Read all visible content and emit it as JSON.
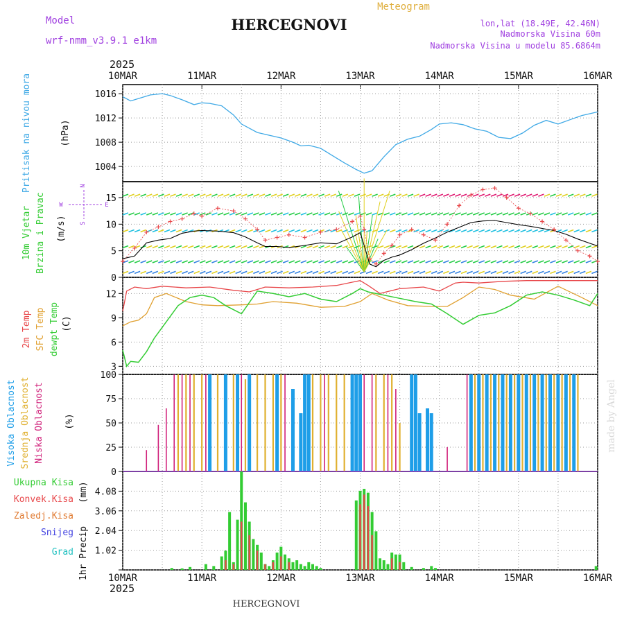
{
  "header": {
    "model_label": "Model",
    "model_name": "wrf-nmm_v3.9.1 e1km",
    "title": "HERCEGNOVI",
    "product": "Meteogram",
    "lonlat": "lon,lat (18.49E, 42.46N)",
    "elevation": "Nadmorska Visina 60m",
    "model_elevation": "Nadmorska Visina u modelu 85.6864m",
    "watermark": "made by Angel",
    "footer_title": "HERCEGNOVI"
  },
  "colors": {
    "pressure": "#3fa9e6",
    "temp2m": "#e8474a",
    "sfc": "#e0a030",
    "dew": "#33cc33",
    "high_cloud": "#1e9ee8",
    "mid_cloud": "#e0b030",
    "low_cloud": "#d0207a",
    "precip_total": "#33cc33",
    "precip_conv": "#e8474a",
    "precip_frozen": "#e07a30",
    "precip_snow": "#4040e0",
    "precip_graupel": "#20c0c0",
    "wind_dir_label": "#a040e0"
  },
  "chart_data": [
    {
      "type": "line",
      "panel": "pressure",
      "ylabel": [
        "Pritisak na nivou mora",
        "(hPa)"
      ],
      "x_year": "2025",
      "x_ticks": [
        "10MAR",
        "11MAR",
        "12MAR",
        "13MAR",
        "14MAR",
        "15MAR",
        "16MAR"
      ],
      "xlim": [
        0,
        6
      ],
      "ylim": [
        1001.5,
        1017.5
      ],
      "yticks": [
        1004,
        1008,
        1012,
        1016
      ],
      "series": [
        {
          "name": "pressure",
          "x": [
            0,
            0.1,
            0.2,
            0.35,
            0.5,
            0.6,
            0.75,
            0.9,
            1.0,
            1.1,
            1.25,
            1.4,
            1.5,
            1.7,
            1.9,
            2.0,
            2.15,
            2.25,
            2.35,
            2.5,
            2.65,
            2.8,
            2.95,
            3.05,
            3.15,
            3.3,
            3.45,
            3.6,
            3.75,
            3.9,
            4.0,
            4.15,
            4.3,
            4.45,
            4.6,
            4.75,
            4.9,
            5.05,
            5.2,
            5.35,
            5.5,
            5.65,
            5.8,
            6.0
          ],
          "values": [
            1015.5,
            1014.8,
            1015.2,
            1015.8,
            1016.0,
            1015.7,
            1015.0,
            1014.2,
            1014.5,
            1014.4,
            1014.0,
            1012.5,
            1011.0,
            1009.6,
            1009.0,
            1008.7,
            1008.0,
            1007.4,
            1007.5,
            1007.0,
            1005.8,
            1004.6,
            1003.5,
            1002.9,
            1003.3,
            1005.6,
            1007.6,
            1008.5,
            1009.0,
            1010.1,
            1011.0,
            1011.2,
            1010.9,
            1010.2,
            1009.8,
            1008.8,
            1008.6,
            1009.5,
            1010.8,
            1011.6,
            1011.0,
            1011.7,
            1012.4,
            1013.0
          ]
        }
      ]
    },
    {
      "type": "line",
      "panel": "wind",
      "ylabel": [
        "10m Vjetar",
        "Brzina i Pravac",
        "(m/s)"
      ],
      "compass": [
        "N",
        "E",
        "S",
        "W"
      ],
      "xlim": [
        0,
        6
      ],
      "ylim": [
        0,
        18
      ],
      "yticks": [
        0,
        5,
        10,
        15
      ],
      "levels": [
        15,
        12,
        9,
        6,
        3
      ],
      "series": [
        {
          "name": "wind speed",
          "x": [
            0,
            0.15,
            0.3,
            0.45,
            0.6,
            0.75,
            0.9,
            1.0,
            1.2,
            1.4,
            1.55,
            1.7,
            1.8,
            1.95,
            2.1,
            2.3,
            2.5,
            2.7,
            2.9,
            3.0,
            3.05,
            3.12,
            3.2,
            3.3,
            3.4,
            3.5,
            3.65,
            3.8,
            3.95,
            4.1,
            4.25,
            4.4,
            4.55,
            4.7,
            4.85,
            5.0,
            5.15,
            5.3,
            5.45,
            5.6,
            5.75,
            5.9,
            6.0
          ],
          "values": [
            3.5,
            4.0,
            6.5,
            7.0,
            7.3,
            8.3,
            8.7,
            8.8,
            8.7,
            8.4,
            7.6,
            6.5,
            5.8,
            5.8,
            5.6,
            6.0,
            6.5,
            6.3,
            7.6,
            8.4,
            6.0,
            2.5,
            2.0,
            3.2,
            3.8,
            4.2,
            5.2,
            6.4,
            7.4,
            8.5,
            9.4,
            10.3,
            10.6,
            10.7,
            10.3,
            9.9,
            9.6,
            9.2,
            8.8,
            8.1,
            7.2,
            6.4,
            5.9
          ]
        },
        {
          "name": "gust",
          "x": [
            0,
            0.15,
            0.3,
            0.45,
            0.6,
            0.75,
            0.9,
            1.0,
            1.2,
            1.4,
            1.55,
            1.7,
            1.8,
            1.95,
            2.1,
            2.3,
            2.5,
            2.7,
            2.9,
            3.0,
            3.05,
            3.12,
            3.2,
            3.3,
            3.4,
            3.5,
            3.65,
            3.8,
            3.95,
            4.1,
            4.25,
            4.4,
            4.55,
            4.7,
            4.85,
            5.0,
            5.15,
            5.3,
            5.45,
            5.6,
            5.75,
            5.9,
            6.0
          ],
          "values": [
            3.0,
            5.5,
            8.5,
            9.5,
            10.5,
            11.0,
            12.0,
            11.5,
            13.0,
            12.5,
            11.0,
            9.0,
            7.0,
            7.5,
            8.0,
            7.5,
            8.5,
            9.0,
            10.5,
            11.5,
            9.0,
            3.5,
            2.5,
            4.5,
            6.0,
            8.0,
            9.0,
            8.0,
            7.0,
            10.0,
            13.5,
            15.5,
            16.5,
            16.8,
            15.0,
            13.0,
            12.0,
            10.5,
            9.0,
            7.0,
            5.0,
            4.0,
            3.0
          ]
        }
      ]
    },
    {
      "type": "line",
      "panel": "temperature",
      "ylabel": [
        "2m Temp",
        "SFC Temp",
        "dewpt Temp",
        "(C)"
      ],
      "xlim": [
        0,
        6
      ],
      "ylim": [
        2,
        14
      ],
      "yticks": [
        3,
        6,
        9,
        12
      ],
      "series": [
        {
          "name": "2m Temp",
          "x": [
            0,
            0.05,
            0.15,
            0.3,
            0.5,
            0.8,
            1.1,
            1.4,
            1.6,
            1.8,
            2.1,
            2.4,
            2.7,
            2.9,
            3.0,
            3.1,
            3.25,
            3.5,
            3.8,
            4.0,
            4.2,
            4.3,
            4.5,
            4.8,
            5.1,
            5.4,
            5.7,
            6.0
          ],
          "values": [
            9.8,
            12.3,
            12.8,
            12.6,
            12.9,
            12.7,
            12.8,
            12.4,
            12.2,
            12.8,
            12.7,
            12.8,
            13.0,
            13.4,
            13.6,
            13.0,
            12.0,
            12.6,
            12.8,
            12.3,
            13.3,
            13.4,
            13.3,
            13.5,
            13.6,
            13.6,
            13.6,
            13.6
          ]
        },
        {
          "name": "SFC Temp",
          "x": [
            0,
            0.1,
            0.2,
            0.3,
            0.4,
            0.55,
            0.8,
            1.0,
            1.2,
            1.5,
            1.7,
            1.9,
            2.2,
            2.5,
            2.8,
            3.0,
            3.15,
            3.35,
            3.6,
            3.9,
            4.1,
            4.3,
            4.5,
            4.7,
            4.9,
            5.2,
            5.5,
            5.8,
            6.0
          ],
          "values": [
            8.0,
            8.5,
            8.7,
            9.5,
            11.5,
            12.0,
            11.0,
            10.6,
            10.5,
            10.6,
            10.7,
            11.0,
            10.8,
            10.3,
            10.4,
            11.0,
            12.0,
            11.2,
            10.5,
            10.4,
            10.4,
            11.5,
            12.8,
            12.5,
            11.8,
            11.3,
            12.9,
            11.5,
            10.5
          ]
        },
        {
          "name": "dewpt Temp",
          "x": [
            0,
            0.05,
            0.1,
            0.2,
            0.3,
            0.4,
            0.55,
            0.7,
            0.85,
            1.0,
            1.15,
            1.3,
            1.5,
            1.7,
            1.9,
            2.1,
            2.3,
            2.5,
            2.7,
            2.9,
            3.0,
            3.1,
            3.25,
            3.45,
            3.7,
            3.9,
            4.1,
            4.3,
            4.5,
            4.7,
            4.9,
            5.1,
            5.3,
            5.5,
            5.7,
            5.9,
            6.0
          ],
          "values": [
            5.0,
            3.0,
            3.6,
            3.5,
            4.8,
            6.5,
            8.5,
            10.5,
            11.5,
            11.8,
            11.5,
            10.5,
            9.5,
            12.3,
            12.0,
            11.6,
            12.0,
            11.3,
            11.0,
            12.0,
            12.6,
            12.2,
            11.9,
            11.5,
            11.0,
            10.7,
            9.5,
            8.2,
            9.3,
            9.6,
            10.5,
            11.8,
            12.2,
            11.8,
            11.2,
            10.5,
            12.0
          ]
        }
      ]
    },
    {
      "type": "bar",
      "panel": "cloud",
      "ylabel": [
        "Visoka Oblacnost",
        "Srednja Oblacnost",
        "Niska Oblacnost",
        "(%)"
      ],
      "xlim": [
        0,
        6
      ],
      "ylim": [
        0,
        100
      ],
      "yticks": [
        0,
        25,
        50,
        75,
        100
      ],
      "series": [
        {
          "name": "Visoka Oblacnost",
          "x": [
            1.1,
            1.3,
            1.45,
            1.6,
            1.95,
            2.15,
            2.25,
            2.3,
            2.35,
            2.9,
            2.95,
            3.0,
            3.65,
            3.7,
            3.75,
            3.85,
            3.9,
            4.4,
            4.5,
            4.6,
            4.7,
            4.8,
            4.9,
            5.0,
            5.1,
            5.2,
            5.3,
            5.4,
            5.5,
            5.6,
            5.7
          ],
          "values": [
            100,
            100,
            100,
            100,
            100,
            85,
            60,
            100,
            100,
            100,
            100,
            100,
            100,
            100,
            60,
            65,
            60,
            100,
            100,
            100,
            100,
            100,
            100,
            100,
            100,
            100,
            100,
            100,
            100,
            100,
            100
          ]
        },
        {
          "name": "Srednja Oblacnost",
          "x": [
            0.7,
            0.8,
            0.9,
            1.0,
            1.2,
            1.4,
            1.55,
            1.7,
            1.8,
            1.9,
            2.0,
            2.4,
            2.5,
            2.6,
            2.7,
            2.8,
            3.2,
            3.3,
            3.4,
            3.5,
            4.45,
            4.55,
            4.65,
            4.75,
            4.85,
            4.95,
            5.05,
            5.15,
            5.25,
            5.35,
            5.45,
            5.55,
            5.65,
            5.75
          ],
          "values": [
            100,
            100,
            100,
            100,
            100,
            100,
            95,
            100,
            100,
            100,
            100,
            100,
            100,
            100,
            100,
            100,
            100,
            100,
            100,
            50,
            100,
            100,
            100,
            100,
            100,
            100,
            100,
            100,
            100,
            100,
            100,
            100,
            100,
            100
          ]
        },
        {
          "name": "Niska Oblacnost",
          "x": [
            0.3,
            0.45,
            0.55,
            0.65,
            0.75,
            0.85,
            1.05,
            1.5,
            2.05,
            2.55,
            3.05,
            3.15,
            3.35,
            3.45,
            4.1,
            4.35
          ],
          "values": [
            22,
            48,
            65,
            100,
            100,
            100,
            100,
            100,
            100,
            100,
            100,
            100,
            100,
            85,
            25,
            100
          ]
        }
      ]
    },
    {
      "type": "bar",
      "panel": "precip",
      "ylabel": [
        "1hr Precip",
        "(mm)"
      ],
      "legend": [
        "Ukupna Kisa",
        "Konvek.Kisa",
        "Zaledj.Kisa",
        "Snijeg",
        "Grad"
      ],
      "xlim": [
        0,
        6
      ],
      "ylim": [
        0,
        5.1
      ],
      "yticks": [
        0,
        1.02,
        2.04,
        3.06,
        4.08
      ],
      "ytick_labels": [
        "",
        "1.02",
        "2.04",
        "3.06",
        "4.08"
      ],
      "x_ticks": [
        "10MAR",
        "11MAR",
        "12MAR",
        "13MAR",
        "14MAR",
        "15MAR",
        "16MAR"
      ],
      "x_year": "2025",
      "series": [
        {
          "name": "Ukupna Kisa",
          "x": [
            0.62,
            0.75,
            0.85,
            1.05,
            1.15,
            1.25,
            1.3,
            1.35,
            1.4,
            1.45,
            1.5,
            1.55,
            1.6,
            1.65,
            1.7,
            1.75,
            1.8,
            1.85,
            1.9,
            1.95,
            2.0,
            2.05,
            2.1,
            2.15,
            2.2,
            2.25,
            2.3,
            2.35,
            2.4,
            2.45,
            2.5,
            2.95,
            3.0,
            3.05,
            3.1,
            3.15,
            3.2,
            3.25,
            3.3,
            3.35,
            3.4,
            3.45,
            3.5,
            3.55,
            3.65,
            3.8,
            3.9,
            3.95,
            5.98
          ],
          "values": [
            0.1,
            0.08,
            0.15,
            0.3,
            0.2,
            0.7,
            1.0,
            3.0,
            0.4,
            2.6,
            5.1,
            3.5,
            2.5,
            1.6,
            1.3,
            0.9,
            0.3,
            0.2,
            0.5,
            0.9,
            1.2,
            0.8,
            0.6,
            0.4,
            0.5,
            0.3,
            0.2,
            0.4,
            0.3,
            0.2,
            0.1,
            3.6,
            4.1,
            4.2,
            4.0,
            3.0,
            2.0,
            0.6,
            0.5,
            0.3,
            0.9,
            0.8,
            0.8,
            0.4,
            0.15,
            0.1,
            0.2,
            0.1,
            0.2
          ]
        },
        {
          "name": "Konvek.Kisa",
          "x": [
            1.3,
            1.4,
            1.5,
            1.6,
            1.7,
            1.8,
            1.9,
            2.0,
            2.1,
            3.0,
            3.05,
            3.1,
            3.15,
            3.4,
            3.5
          ],
          "values": [
            0.5,
            0.3,
            2.5,
            1.8,
            1.0,
            0.3,
            0.4,
            0.7,
            0.4,
            3.4,
            3.9,
            3.3,
            1.8,
            0.6,
            0.4
          ]
        }
      ]
    }
  ]
}
